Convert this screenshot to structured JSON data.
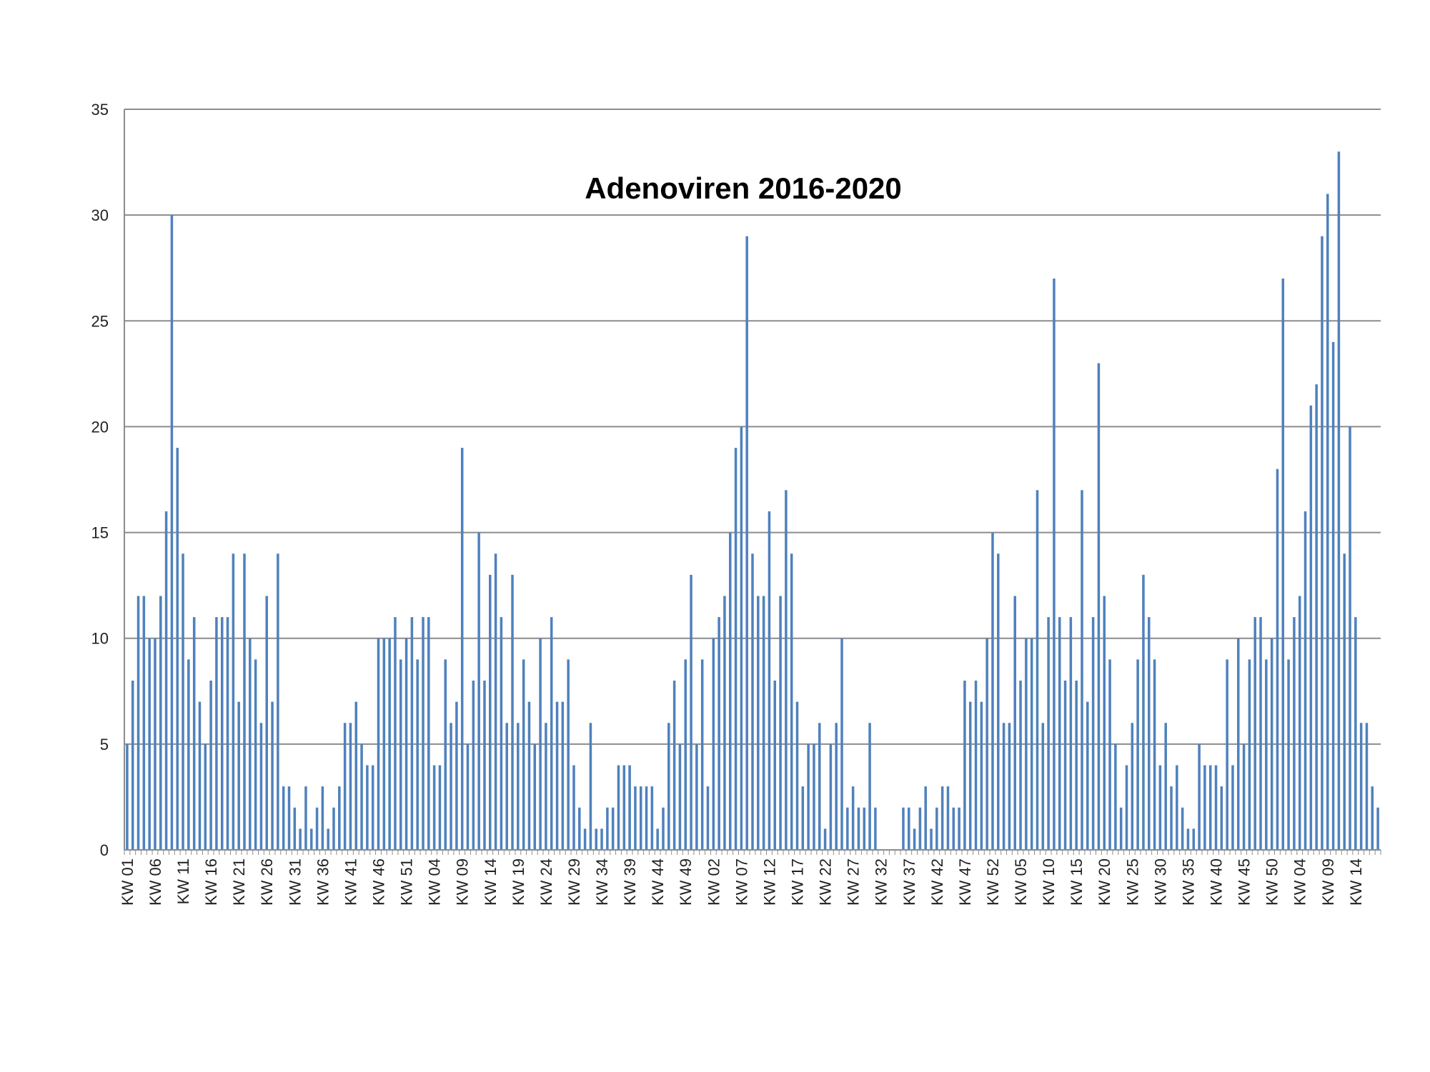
{
  "chart_data": {
    "type": "bar",
    "title": "Adenoviren 2016-2020",
    "xlabel": "",
    "ylabel": "",
    "ylim": [
      0,
      35
    ],
    "yticks": [
      0,
      5,
      10,
      15,
      20,
      25,
      30,
      35
    ],
    "grid": true,
    "legend": "none",
    "bar_color": "#4f81bd",
    "grid_color": "#8c8c8c",
    "category_labels": [
      "KW 01",
      "KW 06",
      "KW 11",
      "KW 16",
      "KW 21",
      "KW 26",
      "KW 31",
      "KW 36",
      "KW 41",
      "KW 46",
      "KW 51",
      "KW 04",
      "KW 09",
      "KW 14",
      "KW 19",
      "KW 24",
      "KW 29",
      "KW 34",
      "KW 39",
      "KW 44",
      "KW 49",
      "KW 02",
      "KW 07",
      "KW 12",
      "KW 17",
      "KW 22",
      "KW 27",
      "KW 32",
      "KW 37",
      "KW 42",
      "KW 47",
      "KW 52",
      "KW 05",
      "KW 10",
      "KW 15",
      "KW 20",
      "KW 25",
      "KW 30",
      "KW 35",
      "KW 40",
      "KW 45",
      "KW 50",
      "KW 04",
      "KW 09",
      "KW 14"
    ],
    "values": [
      5,
      8,
      12,
      12,
      10,
      10,
      12,
      16,
      30,
      19,
      14,
      9,
      11,
      7,
      5,
      8,
      11,
      11,
      11,
      14,
      7,
      14,
      10,
      9,
      6,
      12,
      7,
      14,
      3,
      3,
      2,
      1,
      3,
      1,
      2,
      3,
      1,
      2,
      3,
      6,
      6,
      7,
      5,
      4,
      4,
      10,
      10,
      10,
      11,
      9,
      10,
      11,
      9,
      11,
      11,
      4,
      4,
      9,
      6,
      7,
      19,
      5,
      8,
      15,
      8,
      13,
      14,
      11,
      6,
      13,
      6,
      9,
      7,
      5,
      10,
      6,
      11,
      7,
      7,
      9,
      4,
      2,
      1,
      6,
      1,
      1,
      2,
      2,
      4,
      4,
      4,
      3,
      3,
      3,
      3,
      1,
      2,
      6,
      8,
      5,
      9,
      13,
      5,
      9,
      3,
      10,
      11,
      12,
      15,
      19,
      20,
      29,
      14,
      12,
      12,
      16,
      8,
      12,
      17,
      14,
      7,
      3,
      5,
      5,
      6,
      1,
      5,
      6,
      10,
      2,
      3,
      2,
      2,
      6,
      2,
      0,
      0,
      0,
      0,
      2,
      2,
      1,
      2,
      3,
      1,
      2,
      3,
      3,
      2,
      2,
      8,
      7,
      8,
      7,
      10,
      15,
      14,
      6,
      6,
      12,
      8,
      10,
      10,
      17,
      6,
      11,
      27,
      11,
      8,
      11,
      8,
      17,
      7,
      11,
      23,
      12,
      9,
      5,
      2,
      4,
      6,
      9,
      13,
      11,
      9,
      4,
      6,
      3,
      4,
      2,
      1,
      1,
      5,
      4,
      4,
      4,
      3,
      9,
      4,
      10,
      5,
      9,
      11,
      11,
      9,
      10,
      18,
      27,
      9,
      11,
      12,
      16,
      21,
      22,
      29,
      31,
      24,
      33,
      14,
      20,
      11,
      6,
      6,
      3,
      2
    ]
  }
}
